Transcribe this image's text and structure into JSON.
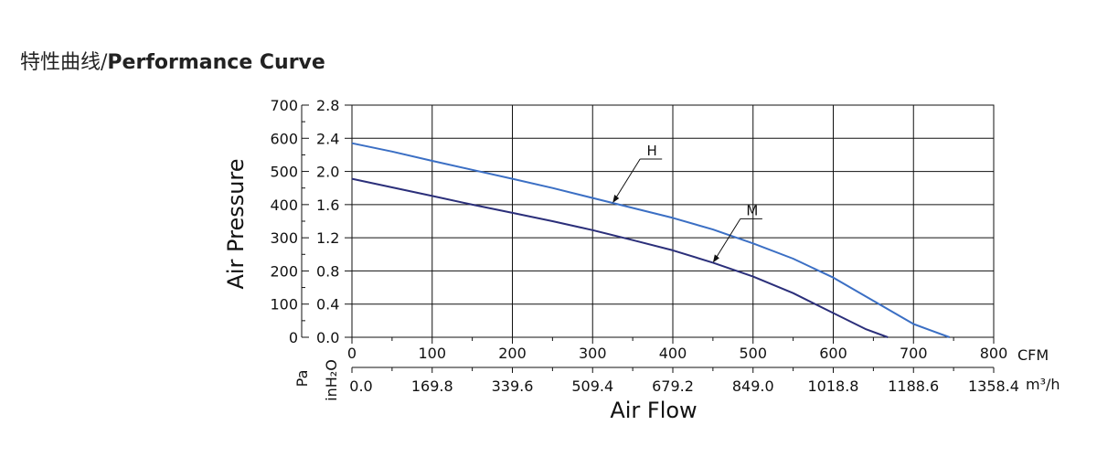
{
  "title": {
    "cn": "特性曲线/",
    "en": "Performance Curve"
  },
  "chart_data": {
    "type": "line",
    "xlabel": "Air Flow",
    "ylabel": "Air Pressure",
    "x_units": {
      "primary": "CFM",
      "secondary": "m³/h"
    },
    "y_units": {
      "primary": "Pa",
      "secondary": "inH₂O"
    },
    "xlim": [
      0,
      800
    ],
    "ylim": [
      0,
      700
    ],
    "grid": true,
    "x_ticks": [
      "0",
      "100",
      "200",
      "300",
      "400",
      "500",
      "600",
      "700",
      "800"
    ],
    "x_ticks_m3h": [
      "0.0",
      "169.8",
      "339.6",
      "509.4",
      "679.2",
      "849.0",
      "1018.8",
      "1188.6",
      "1358.4"
    ],
    "y_ticks_pa": [
      "0",
      "100",
      "200",
      "300",
      "400",
      "500",
      "600",
      "700"
    ],
    "y_ticks_inh2o": [
      "0.0",
      "0.4",
      "0.8",
      "1.2",
      "1.6",
      "2.0",
      "2.4",
      "2.8"
    ],
    "series": [
      {
        "name": "H",
        "color": "#3b6fc4",
        "x": [
          0,
          50,
          100,
          150,
          200,
          250,
          300,
          350,
          400,
          450,
          500,
          550,
          600,
          650,
          700,
          745
        ],
        "y": [
          585,
          560,
          532,
          505,
          478,
          450,
          420,
          390,
          360,
          325,
          283,
          237,
          180,
          110,
          40,
          0
        ]
      },
      {
        "name": "M",
        "color": "#2b2f7a",
        "x": [
          0,
          50,
          100,
          150,
          200,
          250,
          300,
          350,
          400,
          450,
          500,
          550,
          600,
          640,
          668
        ],
        "y": [
          478,
          452,
          426,
          400,
          375,
          350,
          323,
          293,
          262,
          225,
          183,
          133,
          73,
          25,
          0
        ]
      }
    ],
    "annotations": [
      {
        "label": "H",
        "series": "H",
        "x_point": 325
      },
      {
        "label": "M",
        "series": "M",
        "x_point": 450
      }
    ]
  }
}
